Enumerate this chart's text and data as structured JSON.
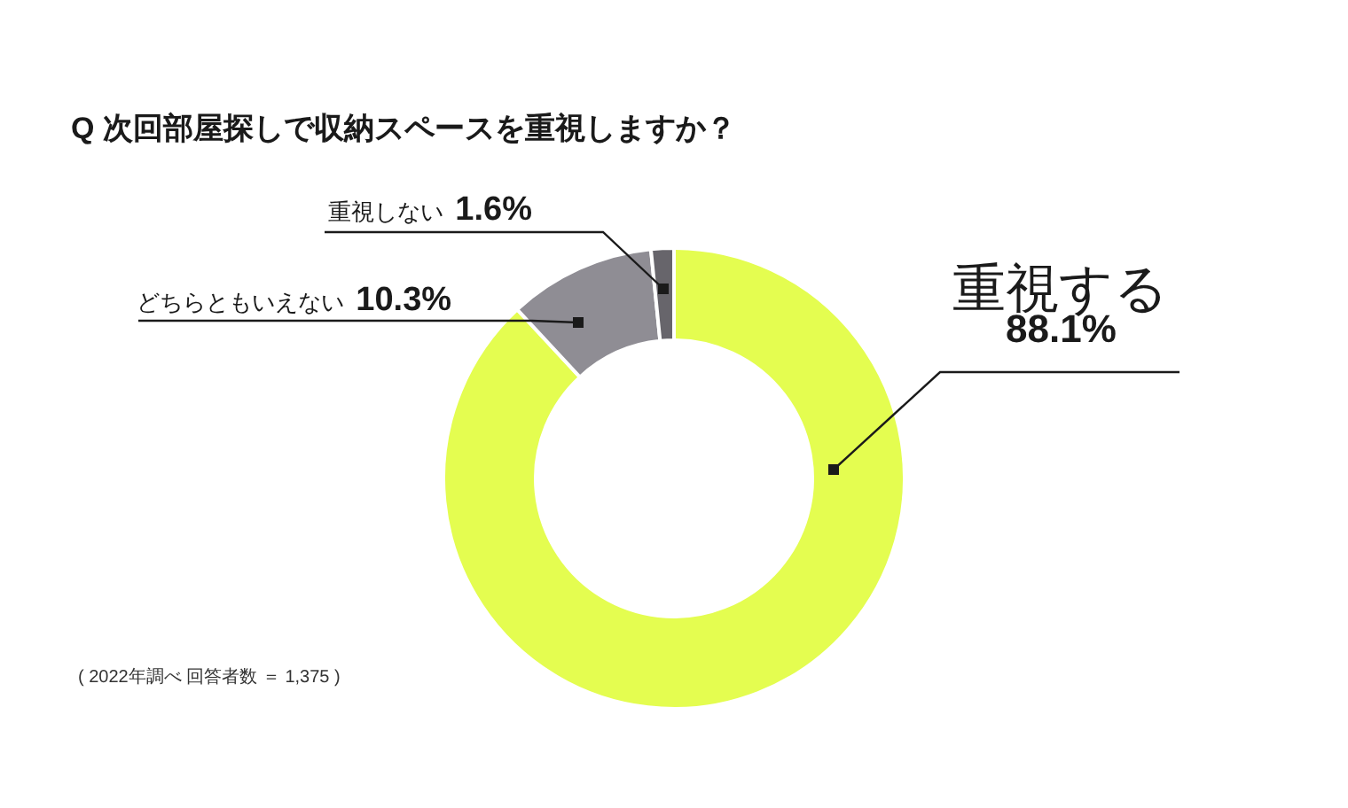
{
  "chart_data": {
    "type": "donut",
    "title": "Q 次回部屋探しで収納スペースを重視しますか？",
    "categories": [
      "重視する",
      "どちらともいえない",
      "重視しない"
    ],
    "values": [
      88.1,
      10.3,
      1.6
    ],
    "colors": [
      "#e4fd50",
      "#8f8d94",
      "#67656b"
    ],
    "value_labels": [
      "88.1%",
      "10.3%",
      "1.6%"
    ],
    "annotations": [
      "( 2022年調べ 回答者数 ＝ 1,375 )"
    ]
  }
}
